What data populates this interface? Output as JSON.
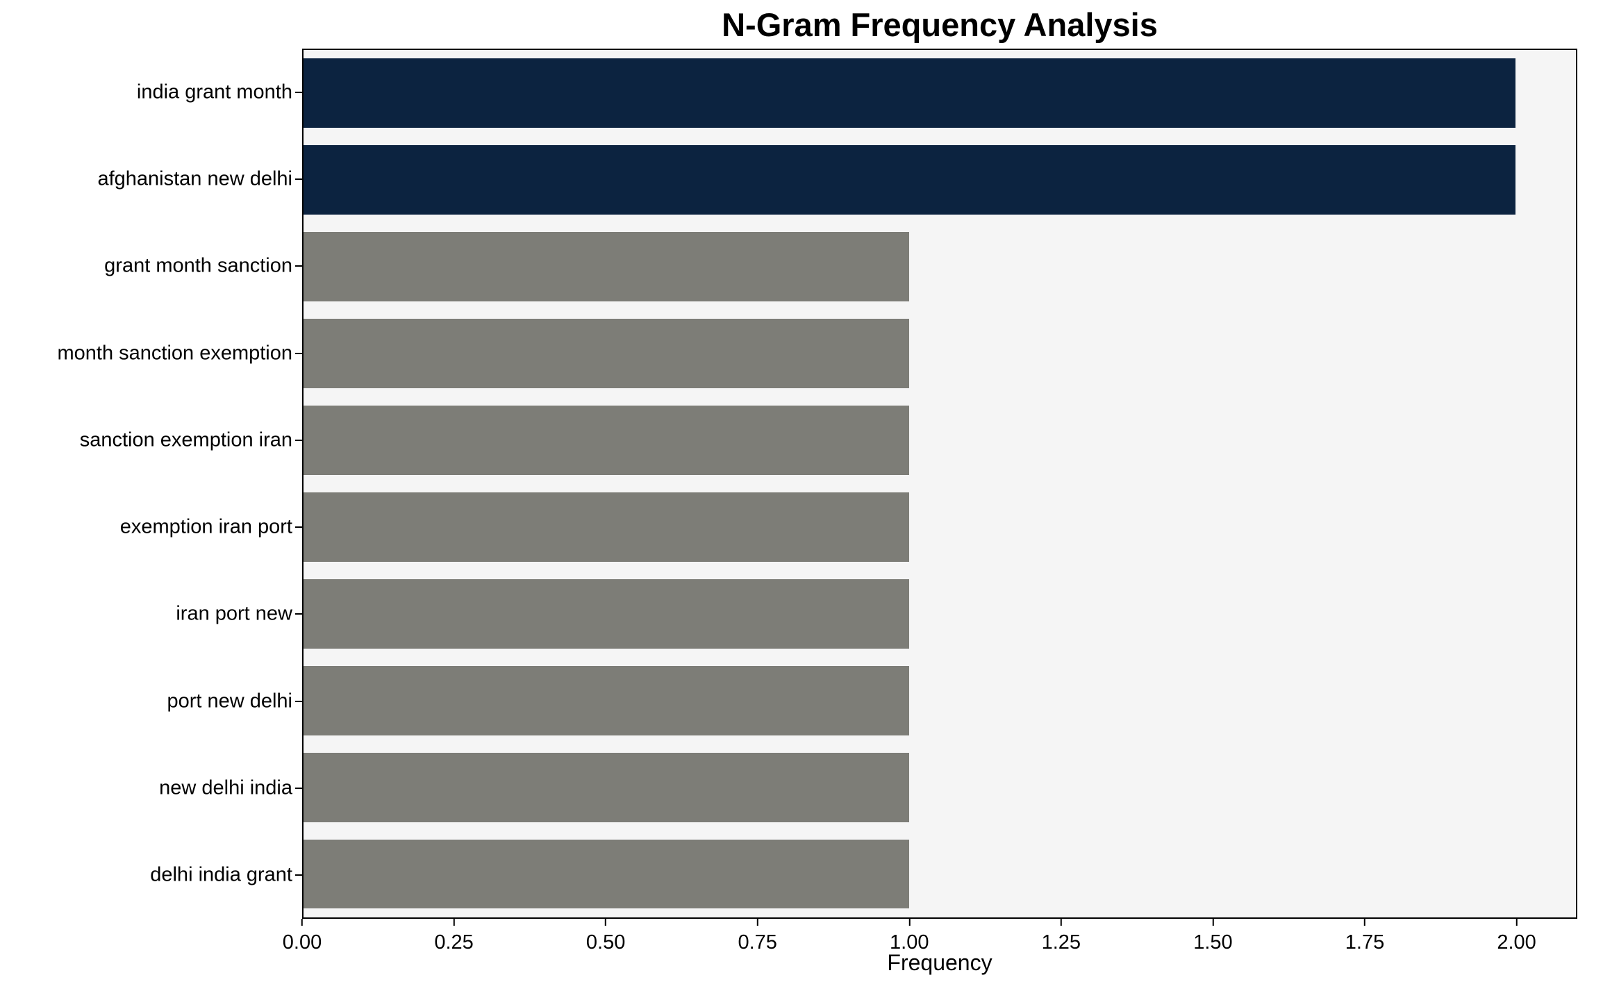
{
  "chart_data": {
    "type": "bar",
    "orientation": "horizontal",
    "title": "N-Gram Frequency Analysis",
    "xlabel": "Frequency",
    "ylabel": "",
    "categories": [
      "india grant month",
      "afghanistan new delhi",
      "grant month sanction",
      "month sanction exemption",
      "sanction exemption iran",
      "exemption iran port",
      "iran port new",
      "port new delhi",
      "new delhi india",
      "delhi india grant"
    ],
    "values": [
      2,
      2,
      1,
      1,
      1,
      1,
      1,
      1,
      1,
      1
    ],
    "bar_colors": [
      "#0c2340",
      "#0c2340",
      "#7d7d77",
      "#7d7d77",
      "#7d7d77",
      "#7d7d77",
      "#7d7d77",
      "#7d7d77",
      "#7d7d77",
      "#7d7d77"
    ],
    "xlim": [
      0,
      2.1
    ],
    "xticks": {
      "values": [
        0,
        0.25,
        0.5,
        0.75,
        1.0,
        1.25,
        1.5,
        1.75,
        2.0
      ],
      "labels": [
        "0.00",
        "0.25",
        "0.50",
        "0.75",
        "1.00",
        "1.25",
        "1.50",
        "1.75",
        "2.00"
      ]
    },
    "grid": false,
    "legend": null,
    "plot_background": "#f5f5f5",
    "colors": {
      "highlight": "#0c2340",
      "default": "#7d7d77"
    },
    "bar_height_fraction": 0.8
  }
}
